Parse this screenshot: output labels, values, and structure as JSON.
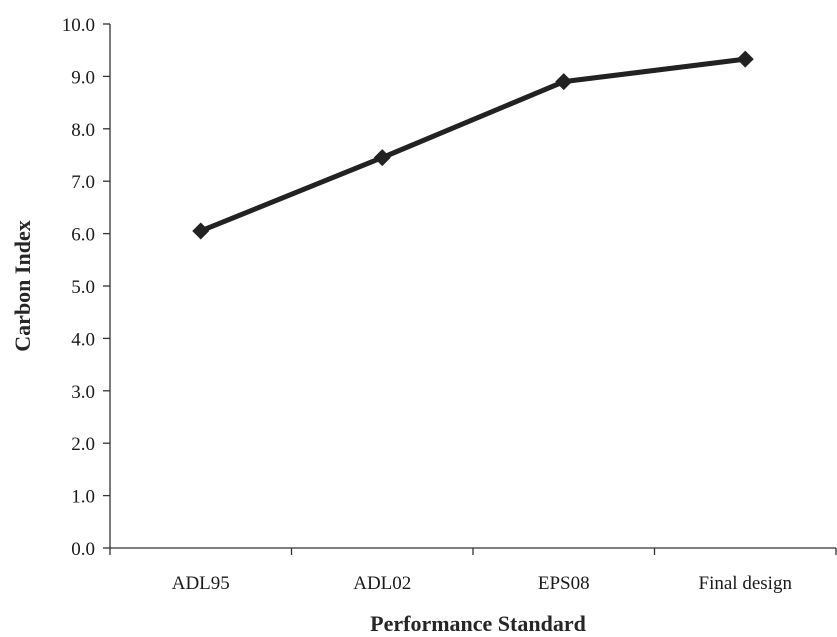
{
  "chart_data": {
    "type": "line",
    "title": "",
    "xlabel": "Performance Standard",
    "ylabel": "Carbon Index",
    "categories": [
      "ADL95",
      "ADL02",
      "EPS08",
      "Final design"
    ],
    "series": [
      {
        "values": [
          6.05,
          7.45,
          8.9,
          9.33
        ]
      }
    ],
    "ylim": [
      0.0,
      10.0
    ],
    "yticks": [
      "0.0",
      "1.0",
      "2.0",
      "3.0",
      "4.0",
      "5.0",
      "6.0",
      "7.0",
      "8.0",
      "9.0",
      "10.0"
    ],
    "grid": false,
    "legend": "none",
    "marker": "diamond",
    "line_color": "#222222"
  }
}
